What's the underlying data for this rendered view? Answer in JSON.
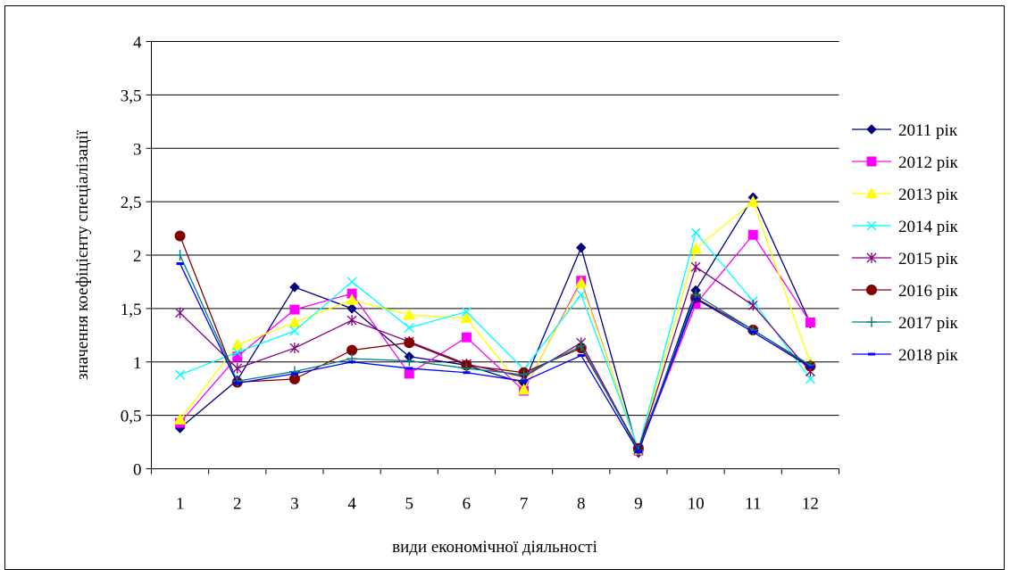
{
  "chart_data": {
    "type": "line",
    "title": "",
    "xlabel": "види економічної діяльності",
    "ylabel": "значення коефіцієнту спеціалізації",
    "x": [
      "1",
      "2",
      "3",
      "4",
      "5",
      "6",
      "7",
      "8",
      "9",
      "10",
      "11",
      "12"
    ],
    "ylim": [
      0,
      4
    ],
    "yticks": [
      "0",
      "0,5",
      "1",
      "1,5",
      "2",
      "2,5",
      "3",
      "3,5",
      "4"
    ],
    "grid": "horizontal",
    "legend_position": "right",
    "series": [
      {
        "name": "2011 рік",
        "color": "#000080",
        "marker": "diamond",
        "values": [
          0.38,
          0.83,
          1.7,
          1.5,
          1.05,
          0.97,
          0.8,
          2.07,
          0.15,
          1.67,
          2.54,
          1.36
        ]
      },
      {
        "name": "2012 рік",
        "color": "#FF00FF",
        "marker": "square",
        "values": [
          0.43,
          1.05,
          1.49,
          1.64,
          0.89,
          1.23,
          0.73,
          1.76,
          0.17,
          1.54,
          2.19,
          1.37
        ]
      },
      {
        "name": "2013 рік",
        "color": "#FFFF00",
        "marker": "triangle",
        "values": [
          0.46,
          1.16,
          1.37,
          1.58,
          1.44,
          1.41,
          0.74,
          1.74,
          0.18,
          2.06,
          2.5,
          0.99
        ]
      },
      {
        "name": "2014 рік",
        "color": "#00FFFF",
        "marker": "x",
        "values": [
          0.88,
          1.09,
          1.29,
          1.75,
          1.32,
          1.47,
          0.93,
          1.63,
          0.19,
          2.21,
          1.57,
          0.84
        ]
      },
      {
        "name": "2015 рік",
        "color": "#800080",
        "marker": "star",
        "values": [
          1.46,
          0.94,
          1.13,
          1.39,
          1.19,
          0.98,
          0.86,
          1.18,
          0.18,
          1.89,
          1.53,
          0.91
        ]
      },
      {
        "name": "2016 рік",
        "color": "#800000",
        "marker": "circle",
        "values": [
          2.18,
          0.81,
          0.84,
          1.11,
          1.18,
          0.97,
          0.9,
          1.13,
          0.19,
          1.6,
          1.3,
          0.96
        ]
      },
      {
        "name": "2017 рік",
        "color": "#008080",
        "marker": "plus",
        "values": [
          2.0,
          0.82,
          0.91,
          1.03,
          1.01,
          0.94,
          0.88,
          1.15,
          0.17,
          1.63,
          1.3,
          0.97
        ]
      },
      {
        "name": "2018 рік",
        "color": "#0000FF",
        "marker": "dash",
        "values": [
          1.92,
          0.8,
          0.89,
          1.0,
          0.94,
          0.9,
          0.82,
          1.06,
          0.16,
          1.59,
          1.28,
          0.95
        ]
      }
    ]
  }
}
